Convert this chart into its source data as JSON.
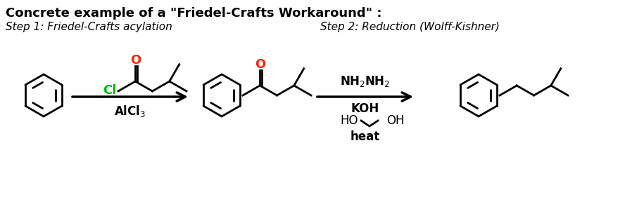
{
  "title": "Concrete example of a \"Friedel-Crafts Workaround\" :",
  "step1_label": "Step 1: Friedel-Crafts acylation",
  "step2_label": "Step 2: Reduction (Wolff-Kishner)",
  "reagent1": "AlCl₃",
  "reagent2a": "NH₂NH₂",
  "reagent2b": "KOH",
  "reagent2c": "heat",
  "bg_color": "#ffffff",
  "title_fontsize": 13,
  "step_fontsize": 11,
  "reagent_fontsize": 12,
  "oxygen_color": "#ff2200",
  "chlorine_color": "#00bb00",
  "black": "#000000"
}
